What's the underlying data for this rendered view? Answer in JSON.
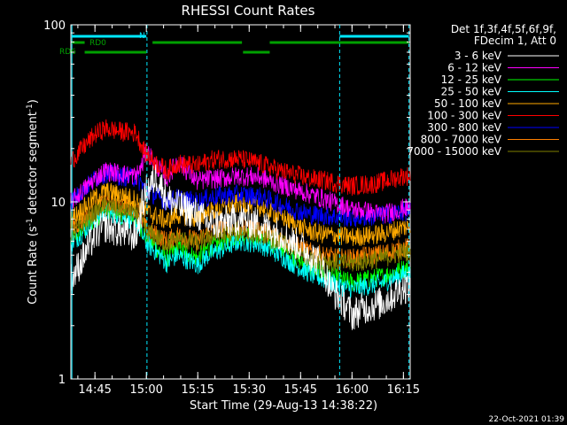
{
  "chart_data": {
    "type": "line",
    "title": "RHESSI Count Rates",
    "xlabel": "Start Time (29-Aug-13 14:38:22)",
    "ylabel_main": "Count Rate (s",
    "ylabel_sup1": "-1",
    "ylabel_mid": " detector segment",
    "ylabel_sup2": "-1",
    "ylabel_end": ")",
    "y_scale": "log",
    "ylim": [
      1,
      100
    ],
    "xlim_minutes": [
      14.633,
      16.283
    ],
    "x_ticks": [
      "14:45",
      "15:00",
      "15:15",
      "15:30",
      "15:45",
      "16:00",
      "16:15"
    ],
    "y_ticks": [
      "1",
      "10",
      "100"
    ],
    "footer": "22-Oct-2021 01:39",
    "legend_header": [
      "Det 1f,3f,4f,5f,6f,9f,",
      "FDecim 1, Att 0"
    ],
    "legend_placement": "right",
    "x_times": [
      14.633,
      14.75,
      14.8,
      14.87,
      14.95,
      14.98,
      15.0,
      15.05,
      15.1,
      15.15,
      15.25,
      15.3,
      15.35,
      15.45,
      15.55,
      15.65,
      15.75,
      15.8,
      15.85,
      15.9,
      15.96,
      16.0,
      16.05,
      16.1,
      16.15,
      16.25
    ],
    "series": [
      {
        "name": "3 - 6 keV",
        "color": "#ffffff",
        "values": [
          3.6,
          6.5,
          7.3,
          6.8,
          6.4,
          9.5,
          11.5,
          14.0,
          10.5,
          9.5,
          8.5,
          7.6,
          7.5,
          8.0,
          7.5,
          6.6,
          5.6,
          5.0,
          4.5,
          3.2,
          2.7,
          2.3,
          2.5,
          2.6,
          2.7,
          3.3
        ]
      },
      {
        "name": "6 - 12 keV",
        "color": "#ff00ff",
        "values": [
          10.0,
          13.5,
          15.0,
          14.5,
          14.0,
          16.0,
          19.5,
          16.0,
          13.5,
          17.0,
          13.0,
          13.5,
          13.5,
          14.0,
          13.8,
          12.5,
          11.5,
          11.0,
          10.5,
          10.0,
          9.5,
          9.0,
          9.0,
          8.7,
          8.5,
          9.2
        ]
      },
      {
        "name": "12 - 25 keV",
        "color": "#00ff00",
        "values": [
          6.0,
          8.0,
          9.0,
          8.5,
          8.0,
          7.0,
          6.2,
          5.5,
          4.8,
          5.5,
          4.8,
          5.5,
          5.8,
          6.5,
          6.3,
          5.6,
          4.6,
          4.2,
          4.0,
          3.8,
          3.6,
          3.5,
          3.6,
          3.7,
          3.8,
          4.2
        ]
      },
      {
        "name": "25 - 50 keV",
        "color": "#00ffff",
        "values": [
          5.8,
          7.8,
          8.8,
          8.4,
          7.8,
          6.5,
          5.8,
          5.2,
          4.5,
          5.0,
          4.4,
          5.0,
          5.3,
          6.0,
          5.8,
          5.0,
          4.2,
          3.9,
          3.7,
          3.5,
          3.3,
          3.2,
          3.3,
          3.4,
          3.5,
          3.9
        ]
      },
      {
        "name": "50 - 100 keV",
        "color": "#ffaa00",
        "values": [
          8.0,
          10.5,
          11.5,
          11.0,
          10.3,
          9.3,
          8.8,
          8.3,
          7.8,
          8.5,
          8.0,
          8.8,
          9.0,
          9.8,
          9.4,
          8.3,
          7.2,
          6.8,
          6.6,
          6.5,
          6.4,
          6.3,
          6.4,
          6.5,
          6.6,
          7.2
        ]
      },
      {
        "name": "100 - 300 keV",
        "color": "#ff0000",
        "values": [
          17.0,
          24.0,
          26.0,
          25.0,
          24.5,
          20.5,
          18.5,
          16.5,
          15.0,
          16.5,
          16.0,
          17.0,
          17.5,
          17.5,
          16.5,
          15.0,
          14.0,
          13.5,
          13.3,
          13.0,
          12.5,
          12.3,
          12.5,
          12.6,
          13.0,
          14.0
        ]
      },
      {
        "name": "300 - 800 keV",
        "color": "#0000ff",
        "values": [
          10.0,
          13.5,
          14.5,
          14.0,
          13.7,
          12.5,
          11.5,
          10.8,
          10.0,
          10.5,
          10.0,
          10.5,
          10.8,
          11.0,
          10.7,
          9.7,
          8.8,
          8.5,
          8.4,
          8.3,
          8.2,
          8.1,
          8.2,
          8.3,
          8.4,
          8.8
        ]
      },
      {
        "name": "800 - 7000 keV",
        "color": "#ff8000",
        "values": [
          7.0,
          9.0,
          10.0,
          9.6,
          9.2,
          7.8,
          7.0,
          6.5,
          6.0,
          6.5,
          6.0,
          6.7,
          7.0,
          7.2,
          7.0,
          6.3,
          5.5,
          5.2,
          5.0,
          4.9,
          4.8,
          4.8,
          4.9,
          5.0,
          5.1,
          5.5
        ]
      },
      {
        "name": "7000 - 15000 keV",
        "color": "#808000",
        "values": [
          6.5,
          8.7,
          9.5,
          9.1,
          8.7,
          7.5,
          6.8,
          6.3,
          5.8,
          6.2,
          5.8,
          6.3,
          6.5,
          6.8,
          6.6,
          5.9,
          5.1,
          4.8,
          4.7,
          4.6,
          4.5,
          4.5,
          4.6,
          4.7,
          4.8,
          5.2
        ]
      }
    ],
    "annotations": {
      "RD0": "RD0",
      "RD6": "RD6",
      "N": "N"
    },
    "vertical_markers": [
      14.638,
      15.003,
      15.94,
      16.277
    ],
    "ann_colors": {
      "green": "#00a000",
      "cyan": "#00e8ff"
    }
  }
}
